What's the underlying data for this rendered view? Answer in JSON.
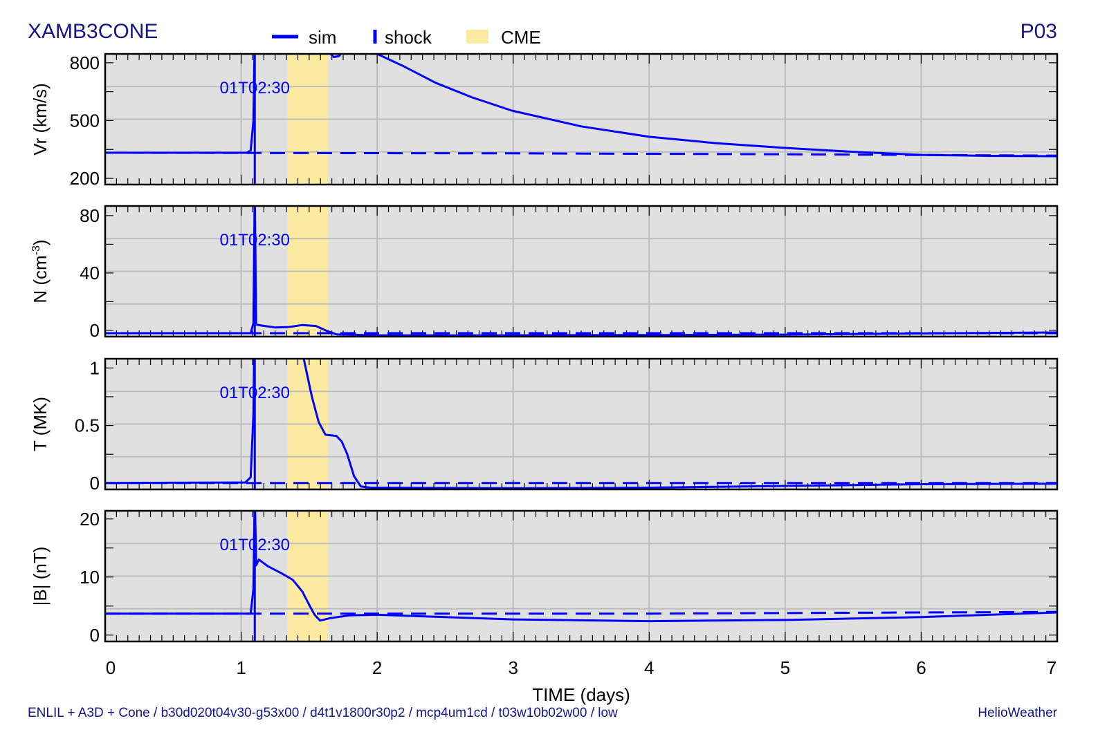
{
  "header": {
    "title": "XAMB3CONE",
    "panel_id": "P03"
  },
  "legend": {
    "sim": "sim",
    "shock": "shock",
    "cme": "CME"
  },
  "footer": {
    "run_info": "ENLIL + A3D + Cone / b30d020t04v30-g53x00 / d4t1v1800r30p2 / mcp4um1cd / t03w10b02w00 / low",
    "credit": "HelioWeather"
  },
  "colors": {
    "sim": "#0000ff",
    "title": "#14148c",
    "cme": "#fbeaa0",
    "panel_bg": "#e0e0e0",
    "grid": "#bdbdbd"
  },
  "chart_data": {
    "type": "line",
    "xlabel": "TIME (days)",
    "xlim": [
      0,
      7
    ],
    "xticks": [
      "0",
      "1",
      "2",
      "3",
      "4",
      "5",
      "6",
      "7"
    ],
    "shock_time": 1.1,
    "shock_label": "01T02:30",
    "cme_interval": [
      1.34,
      1.64
    ],
    "grid": true,
    "legend_position": "top-center",
    "panels": [
      {
        "ylabel": "Vr (km/s)",
        "ylim": [
          168,
          846
        ],
        "yticks": [
          {
            "v": 200,
            "t": "200"
          },
          {
            "v": 500,
            "t": "500"
          },
          {
            "v": 800,
            "t": "800"
          }
        ],
        "sim": [
          [
            0,
            333
          ],
          [
            1.04,
            333
          ],
          [
            1.07,
            345
          ],
          [
            1.09,
            500
          ],
          [
            1.1,
            950
          ],
          [
            1.6,
            950
          ],
          [
            1.64,
            860
          ],
          [
            1.68,
            830
          ],
          [
            1.72,
            835
          ],
          [
            1.76,
            870
          ],
          [
            1.9,
            950
          ],
          [
            2.0,
            846
          ],
          [
            2.2,
            780
          ],
          [
            2.43,
            696
          ],
          [
            2.7,
            620
          ],
          [
            2.99,
            552
          ],
          [
            3.5,
            470
          ],
          [
            4.0,
            416
          ],
          [
            4.5,
            382
          ],
          [
            5.0,
            358
          ],
          [
            5.5,
            338
          ],
          [
            6.0,
            322
          ],
          [
            6.5,
            317
          ],
          [
            7.0,
            315
          ]
        ],
        "baseline": [
          [
            0,
            333
          ],
          [
            3,
            330
          ],
          [
            5,
            325
          ],
          [
            7,
            318
          ]
        ]
      },
      {
        "ylabel": "N (cm",
        "ylabel_sup": "-3",
        "ylabel_end": ")",
        "ylim": [
          -4.4,
          86.7
        ],
        "yticks": [
          {
            "v": 0,
            "t": "0"
          },
          {
            "v": 40,
            "t": "40"
          },
          {
            "v": 80,
            "t": "80"
          }
        ],
        "sim": [
          [
            0,
            -2
          ],
          [
            1.07,
            -2
          ],
          [
            1.09,
            5
          ],
          [
            1.1,
            100
          ],
          [
            1.11,
            4
          ],
          [
            1.15,
            3.3
          ],
          [
            1.25,
            2
          ],
          [
            1.35,
            2.3
          ],
          [
            1.45,
            3.7
          ],
          [
            1.55,
            3
          ],
          [
            1.62,
            0
          ],
          [
            1.7,
            -2.8
          ],
          [
            2.0,
            -3.5
          ],
          [
            3,
            -3.5
          ],
          [
            4,
            -3.3
          ],
          [
            5,
            -3
          ],
          [
            6,
            -2.2
          ],
          [
            7,
            -1.5
          ]
        ],
        "baseline": [
          [
            0,
            -2
          ],
          [
            7,
            -2
          ]
        ]
      },
      {
        "ylabel": "T (MK)",
        "ylim": [
          -0.055,
          1.08
        ],
        "yticks": [
          {
            "v": 0,
            "t": "0"
          },
          {
            "v": 0.5,
            "t": "0.5"
          },
          {
            "v": 1,
            "t": "1"
          }
        ],
        "sim": [
          [
            0,
            0
          ],
          [
            1.03,
            0.005
          ],
          [
            1.07,
            0.05
          ],
          [
            1.09,
            0.6
          ],
          [
            1.1,
            1.6
          ],
          [
            1.4,
            1.6
          ],
          [
            1.46,
            1.08
          ],
          [
            1.52,
            0.75
          ],
          [
            1.57,
            0.53
          ],
          [
            1.62,
            0.42
          ],
          [
            1.7,
            0.41
          ],
          [
            1.74,
            0.36
          ],
          [
            1.78,
            0.25
          ],
          [
            1.83,
            0.06
          ],
          [
            1.88,
            -0.03
          ],
          [
            1.95,
            -0.04
          ],
          [
            3,
            -0.045
          ],
          [
            4,
            -0.04
          ],
          [
            5,
            -0.025
          ],
          [
            6,
            -0.01
          ],
          [
            7,
            -0.005
          ]
        ],
        "baseline": [
          [
            0,
            0
          ],
          [
            7,
            0
          ]
        ]
      },
      {
        "ylabel": "|B| (nT)",
        "ylim": [
          -1.1,
          21.4
        ],
        "yticks": [
          {
            "v": 0,
            "t": "0"
          },
          {
            "v": 10,
            "t": "10"
          },
          {
            "v": 20,
            "t": "20"
          }
        ],
        "sim": [
          [
            0,
            3.7
          ],
          [
            1.07,
            3.7
          ],
          [
            1.09,
            8
          ],
          [
            1.1,
            25
          ],
          [
            1.11,
            12
          ],
          [
            1.13,
            13
          ],
          [
            1.2,
            11.8
          ],
          [
            1.3,
            10.6
          ],
          [
            1.38,
            9.5
          ],
          [
            1.45,
            7.5
          ],
          [
            1.5,
            5.2
          ],
          [
            1.54,
            3.5
          ],
          [
            1.58,
            2.5
          ],
          [
            1.65,
            2.9
          ],
          [
            1.8,
            3.4
          ],
          [
            2,
            3.5
          ],
          [
            2.5,
            3.1
          ],
          [
            3,
            2.7
          ],
          [
            4,
            2.4
          ],
          [
            5,
            2.6
          ],
          [
            6,
            3.1
          ],
          [
            7,
            3.9
          ]
        ],
        "baseline": [
          [
            0,
            3.7
          ],
          [
            4,
            3.7
          ],
          [
            7,
            4.0
          ]
        ]
      }
    ]
  }
}
